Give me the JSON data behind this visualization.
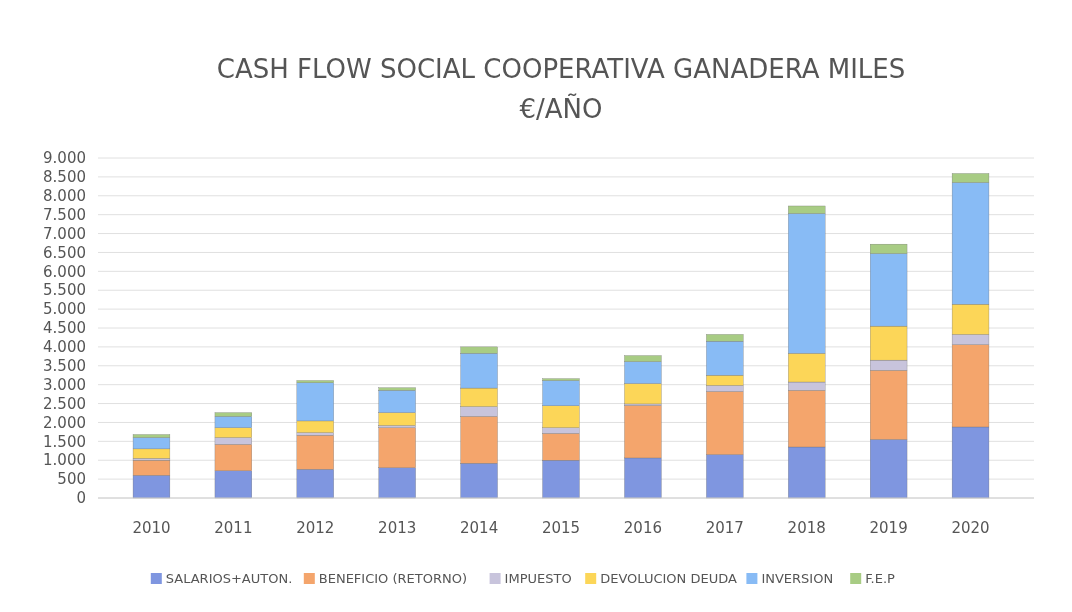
{
  "chart_data": {
    "type": "bar",
    "title": "CASH FLOW SOCIAL COOPERATIVA GANADERA MILES",
    "subtitle": "€/AÑO",
    "stacked": true,
    "grid": "y",
    "legend": "bottom",
    "categories": [
      "2010",
      "2011",
      "2012",
      "2013",
      "2014",
      "2015",
      "2016",
      "2017",
      "2018",
      "2019",
      "2020"
    ],
    "ylim": [
      0,
      9000
    ],
    "yticks": [
      0,
      500,
      {
        "value": 1000,
        "label": "1.000"
      },
      {
        "value": 1500,
        "label": "1.500"
      },
      {
        "value": 2000,
        "label": "2.000"
      },
      {
        "value": 2500,
        "label": "2.500"
      },
      {
        "value": 3000,
        "label": "3.000"
      },
      {
        "value": 3500,
        "label": "3.500"
      },
      {
        "value": 4000,
        "label": "4.000"
      },
      {
        "value": 4500,
        "label": "4.500"
      },
      {
        "value": 5000,
        "label": "5.000"
      },
      {
        "value": 5500,
        "label": "5.500"
      },
      {
        "value": 6000,
        "label": "6.000"
      },
      {
        "value": 6500,
        "label": "6.500"
      },
      {
        "value": 7000,
        "label": "7.000"
      },
      {
        "value": 7500,
        "label": "7.500"
      },
      {
        "value": 8000,
        "label": "8.000"
      },
      {
        "value": 8500,
        "label": "8.500"
      },
      {
        "value": 9000,
        "label": "9.000"
      }
    ],
    "series": [
      {
        "name": "SALARIOS+AUTON.",
        "color": "#7f96e0",
        "values": [
          600,
          720,
          760,
          800,
          920,
          1000,
          1060,
          1150,
          1350,
          1550,
          1880
        ]
      },
      {
        "name": "BENEFICIO (RETORNO)",
        "color": "#f4a56c",
        "values": [
          400,
          700,
          900,
          1060,
          1240,
          710,
          1390,
          1670,
          1500,
          1830,
          2180
        ]
      },
      {
        "name": "IMPUESTO",
        "color": "#c8c4dc",
        "values": [
          50,
          180,
          70,
          60,
          260,
          150,
          40,
          160,
          220,
          270,
          270
        ]
      },
      {
        "name": "DEVOLUCION DEUDA",
        "color": "#fcd658",
        "values": [
          250,
          260,
          310,
          340,
          490,
          580,
          540,
          270,
          760,
          900,
          800
        ]
      },
      {
        "name": "INVERSION",
        "color": "#88bbf5",
        "values": [
          300,
          300,
          1010,
          590,
          920,
          670,
          580,
          900,
          3700,
          1920,
          3220
        ]
      },
      {
        "name": "F.E.P",
        "color": "#a8cc84",
        "values": [
          80,
          100,
          60,
          70,
          170,
          50,
          160,
          180,
          200,
          250,
          240
        ]
      }
    ]
  }
}
